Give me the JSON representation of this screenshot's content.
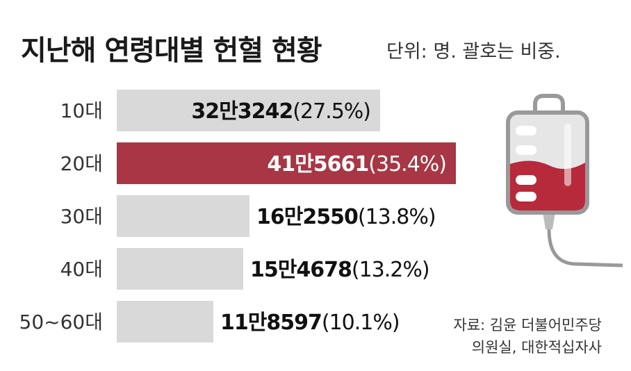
{
  "header": {
    "title": "지난해 연령대별 헌혈 현황",
    "unit_note": "단위: 명. 괄호는 비중."
  },
  "source": {
    "line1": "자료: 김윤 더불어민주당",
    "line2": "의원실, 대한적십자사"
  },
  "colors": {
    "bar_default": "#d9d9d9",
    "bar_highlight": "#a83644",
    "blood": "#b72a3b",
    "bag_fill": "#e6e6e6",
    "bag_stroke": "#999999"
  },
  "icon": "blood-bag-icon",
  "chart_data": {
    "type": "bar",
    "orientation": "horizontal",
    "title": "지난해 연령대별 헌혈 현황",
    "categories": [
      "10대",
      "20대",
      "30대",
      "40대",
      "50~60대"
    ],
    "values": [
      323242,
      415661,
      162550,
      154678,
      118597
    ],
    "value_labels": [
      "32만3242",
      "41만5661",
      "16만2550",
      "15만4678",
      "11만8597"
    ],
    "share_labels": [
      "(27.5%)",
      "(35.4%)",
      "(13.8%)",
      "(13.2%)",
      "(10.1%)"
    ],
    "shares_percent": [
      27.5,
      35.4,
      13.8,
      13.2,
      10.1
    ],
    "highlight_index": 1,
    "xlim": [
      0,
      415661
    ],
    "grid": false,
    "legend": "none"
  }
}
